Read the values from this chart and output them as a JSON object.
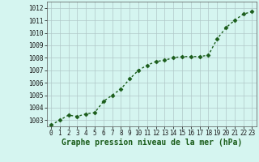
{
  "x": [
    0,
    1,
    2,
    3,
    4,
    5,
    6,
    7,
    8,
    9,
    10,
    11,
    12,
    13,
    14,
    15,
    16,
    17,
    18,
    19,
    20,
    21,
    22,
    23
  ],
  "y": [
    1002.6,
    1003.0,
    1003.4,
    1003.3,
    1003.5,
    1003.6,
    1004.5,
    1005.0,
    1005.5,
    1006.3,
    1007.0,
    1007.4,
    1007.7,
    1007.8,
    1008.0,
    1008.1,
    1008.1,
    1008.1,
    1008.2,
    1009.5,
    1010.4,
    1011.0,
    1011.5,
    1011.7
  ],
  "ylim": [
    1002.5,
    1012.5
  ],
  "yticks": [
    1003,
    1004,
    1005,
    1006,
    1007,
    1008,
    1009,
    1010,
    1011,
    1012
  ],
  "xlim": [
    -0.5,
    23.5
  ],
  "xticks": [
    0,
    1,
    2,
    3,
    4,
    5,
    6,
    7,
    8,
    9,
    10,
    11,
    12,
    13,
    14,
    15,
    16,
    17,
    18,
    19,
    20,
    21,
    22,
    23
  ],
  "xlabel": "Graphe pression niveau de la mer (hPa)",
  "line_color": "#1a5c1a",
  "marker": "D",
  "marker_size": 2.5,
  "line_width": 1.0,
  "bg_color": "#d5f5f0",
  "grid_color": "#b0c8c8",
  "tick_fontsize": 5.5,
  "xlabel_fontsize": 7,
  "ytick_fontsize": 5.5
}
